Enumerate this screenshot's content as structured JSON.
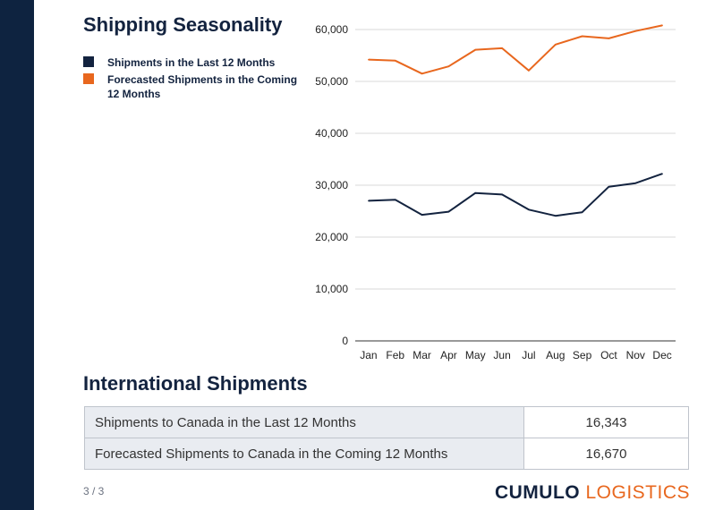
{
  "page": {
    "title": "Shipping Seasonality",
    "section_title": "International Shipments",
    "page_num": "3 / 3",
    "brand_part1": "CUMULO",
    "brand_part2": "LOGISTICS"
  },
  "colors": {
    "navy": "#13233f",
    "orange": "#e8671e",
    "sidebar": "#0e2340"
  },
  "legend": [
    {
      "label": "Shipments in the Last 12 Months",
      "color": "#13233f"
    },
    {
      "label": "Forecasted Shipments in the Coming 12 Months",
      "color": "#e8671e"
    }
  ],
  "chart_data": {
    "type": "line",
    "categories": [
      "Jan",
      "Feb",
      "Mar",
      "Apr",
      "May",
      "Jun",
      "Jul",
      "Aug",
      "Sep",
      "Oct",
      "Nov",
      "Dec"
    ],
    "ylim": [
      0,
      60000
    ],
    "yticks": [
      0,
      10000,
      20000,
      30000,
      40000,
      50000,
      60000
    ],
    "grid": true,
    "legend_position": "left",
    "series": [
      {
        "name": "Shipments in the Last 12 Months",
        "color": "#13233f",
        "values": [
          27000,
          27200,
          24300,
          24900,
          28500,
          28200,
          25300,
          24100,
          24800,
          29700,
          30400,
          32200
        ]
      },
      {
        "name": "Forecasted Shipments in the Coming 12 Months",
        "color": "#e8671e",
        "values": [
          54200,
          54000,
          51500,
          52900,
          56100,
          56400,
          52100,
          57100,
          58700,
          58300,
          59700,
          60800
        ]
      }
    ]
  },
  "table": {
    "rows": [
      {
        "label": "Shipments to Canada in the Last 12 Months",
        "value": "16,343"
      },
      {
        "label": "Forecasted Shipments to Canada in the Coming 12 Months",
        "value": "16,670"
      }
    ]
  }
}
